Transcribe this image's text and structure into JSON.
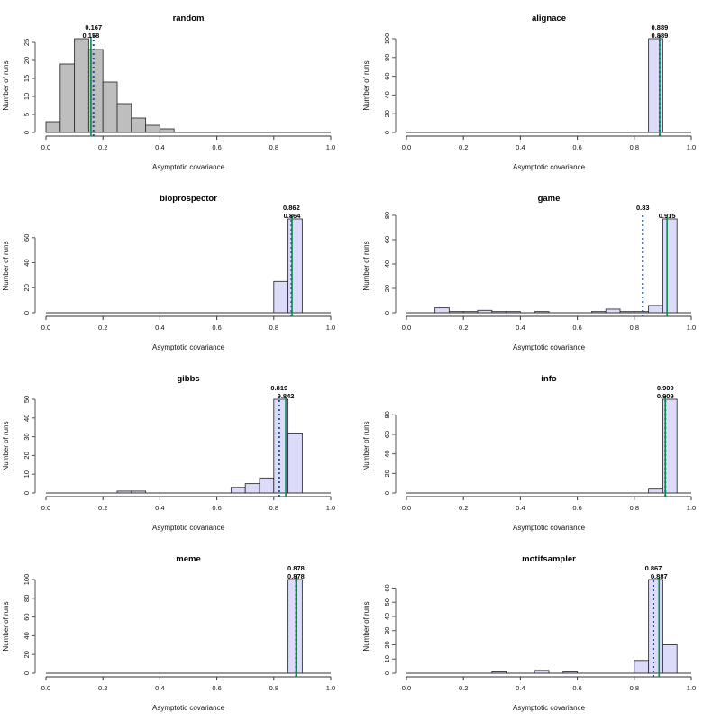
{
  "chart_data": [
    {
      "type": "bar",
      "title": "random",
      "xlabel": "Asymptotic covariance",
      "ylabel": "Number of runs",
      "xlim": [
        0,
        1
      ],
      "xticks": [
        "0.0",
        "0.2",
        "0.4",
        "0.6",
        "0.8",
        "1.0"
      ],
      "ylim": [
        0,
        26
      ],
      "yticks": [
        0,
        5,
        10,
        15,
        20,
        25
      ],
      "bin_width": 0.05,
      "bins_start": [
        0.0,
        0.05,
        0.1,
        0.15,
        0.2,
        0.25,
        0.3,
        0.35,
        0.4,
        0.45,
        0.5,
        0.55,
        0.6,
        0.65,
        0.7,
        0.75,
        0.8,
        0.85,
        0.9,
        0.95
      ],
      "counts": [
        3,
        19,
        26,
        23,
        14,
        8,
        4,
        2,
        1,
        0,
        0,
        0,
        0,
        0,
        0,
        0,
        0,
        0,
        0,
        0
      ],
      "fill": "#bebebe",
      "mean": {
        "value": 0.167,
        "label": "0.167",
        "style": "dotted",
        "color": "#1f4e9c"
      },
      "median": {
        "value": 0.158,
        "label": "0.158",
        "style": "solid",
        "color": "#0a8a4a"
      }
    },
    {
      "type": "bar",
      "title": "alignace",
      "xlabel": "Asymptotic covariance",
      "ylabel": "Number of runs",
      "xlim": [
        0,
        1
      ],
      "xticks": [
        "0.0",
        "0.2",
        "0.4",
        "0.6",
        "0.8",
        "1.0"
      ],
      "ylim": [
        0,
        100
      ],
      "yticks": [
        0,
        20,
        40,
        60,
        80,
        100
      ],
      "bin_width": 0.05,
      "bins_start": [
        0.0,
        0.05,
        0.1,
        0.15,
        0.2,
        0.25,
        0.3,
        0.35,
        0.4,
        0.45,
        0.5,
        0.55,
        0.6,
        0.65,
        0.7,
        0.75,
        0.8,
        0.85,
        0.9,
        0.95
      ],
      "counts": [
        0,
        0,
        0,
        0,
        0,
        0,
        0,
        0,
        0,
        0,
        0,
        0,
        0,
        0,
        0,
        0,
        0,
        100,
        0,
        0
      ],
      "fill": "#dcdcfa",
      "mean": {
        "value": 0.889,
        "label": "0.889",
        "style": "dotted",
        "color": "#1f4e9c"
      },
      "median": {
        "value": 0.889,
        "label": "0.889",
        "style": "solid",
        "color": "#0a8a4a"
      }
    },
    {
      "type": "bar",
      "title": "bioprospector",
      "xlabel": "Asymptotic covariance",
      "ylabel": "Number of runs",
      "xlim": [
        0,
        1
      ],
      "xticks": [
        "0.0",
        "0.2",
        "0.4",
        "0.6",
        "0.8",
        "1.0"
      ],
      "ylim": [
        0,
        75
      ],
      "yticks": [
        0,
        20,
        40,
        60
      ],
      "bin_width": 0.05,
      "bins_start": [
        0.0,
        0.05,
        0.1,
        0.15,
        0.2,
        0.25,
        0.3,
        0.35,
        0.4,
        0.45,
        0.5,
        0.55,
        0.6,
        0.65,
        0.7,
        0.75,
        0.8,
        0.85,
        0.9,
        0.95
      ],
      "counts": [
        0,
        0,
        0,
        0,
        0,
        0,
        0,
        0,
        0,
        0,
        0,
        0,
        0,
        0,
        0,
        0,
        25,
        75,
        0,
        0
      ],
      "fill": "#dcdcfa",
      "mean": {
        "value": 0.862,
        "label": "0.862",
        "style": "dotted",
        "color": "#1f4e9c"
      },
      "median": {
        "value": 0.864,
        "label": "0.864",
        "style": "solid",
        "color": "#0a8a4a"
      }
    },
    {
      "type": "bar",
      "title": "game",
      "xlabel": "Asymptotic covariance",
      "ylabel": "Number of runs",
      "xlim": [
        0,
        1
      ],
      "xticks": [
        "0.0",
        "0.2",
        "0.4",
        "0.6",
        "0.8",
        "1.0"
      ],
      "ylim": [
        0,
        77
      ],
      "yticks": [
        0,
        20,
        40,
        60,
        80
      ],
      "bin_width": 0.05,
      "bins_start": [
        0.0,
        0.05,
        0.1,
        0.15,
        0.2,
        0.25,
        0.3,
        0.35,
        0.4,
        0.45,
        0.5,
        0.55,
        0.6,
        0.65,
        0.7,
        0.75,
        0.8,
        0.85,
        0.9,
        0.95
      ],
      "counts": [
        0,
        0,
        4,
        1,
        1,
        2,
        1,
        1,
        0,
        1,
        0,
        0,
        0,
        1,
        3,
        1,
        1,
        6,
        77,
        0
      ],
      "fill": "#dcdcfa",
      "mean": {
        "value": 0.83,
        "label": "0.83",
        "style": "dotted",
        "color": "#1f4e9c"
      },
      "median": {
        "value": 0.915,
        "label": "0.915",
        "style": "solid",
        "color": "#0a8a4a"
      }
    },
    {
      "type": "bar",
      "title": "gibbs",
      "xlabel": "Asymptotic covariance",
      "ylabel": "Number of runs",
      "xlim": [
        0,
        1
      ],
      "xticks": [
        "0.0",
        "0.2",
        "0.4",
        "0.6",
        "0.8",
        "1.0"
      ],
      "ylim": [
        0,
        50
      ],
      "yticks": [
        0,
        10,
        20,
        30,
        40,
        50
      ],
      "bin_width": 0.05,
      "bins_start": [
        0.0,
        0.05,
        0.1,
        0.15,
        0.2,
        0.25,
        0.3,
        0.35,
        0.4,
        0.45,
        0.5,
        0.55,
        0.6,
        0.65,
        0.7,
        0.75,
        0.8,
        0.85,
        0.9,
        0.95
      ],
      "counts": [
        0,
        0,
        0,
        0,
        0,
        1,
        1,
        0,
        0,
        0,
        0,
        0,
        0,
        3,
        5,
        8,
        50,
        32,
        0,
        0
      ],
      "fill": "#dcdcfa",
      "mean": {
        "value": 0.819,
        "label": "0.819",
        "style": "dotted",
        "color": "#1f4e9c"
      },
      "median": {
        "value": 0.842,
        "label": "0.842",
        "style": "solid",
        "color": "#0a8a4a"
      }
    },
    {
      "type": "bar",
      "title": "info",
      "xlabel": "Asymptotic covariance",
      "ylabel": "Number of runs",
      "xlim": [
        0,
        1
      ],
      "xticks": [
        "0.0",
        "0.2",
        "0.4",
        "0.6",
        "0.8",
        "1.0"
      ],
      "ylim": [
        0,
        96
      ],
      "yticks": [
        0,
        20,
        40,
        60,
        80
      ],
      "bin_width": 0.05,
      "bins_start": [
        0.0,
        0.05,
        0.1,
        0.15,
        0.2,
        0.25,
        0.3,
        0.35,
        0.4,
        0.45,
        0.5,
        0.55,
        0.6,
        0.65,
        0.7,
        0.75,
        0.8,
        0.85,
        0.9,
        0.95
      ],
      "counts": [
        0,
        0,
        0,
        0,
        0,
        0,
        0,
        0,
        0,
        0,
        0,
        0,
        0,
        0,
        0,
        0,
        0,
        4,
        96,
        0
      ],
      "fill": "#dcdcfa",
      "mean": {
        "value": 0.909,
        "label": "0.909",
        "style": "dotted",
        "color": "#1f4e9c"
      },
      "median": {
        "value": 0.909,
        "label": "0.909",
        "style": "solid",
        "color": "#0a8a4a"
      }
    },
    {
      "type": "bar",
      "title": "meme",
      "xlabel": "Asymptotic covariance",
      "ylabel": "Number of runs",
      "xlim": [
        0,
        1
      ],
      "xticks": [
        "0.0",
        "0.2",
        "0.4",
        "0.6",
        "0.8",
        "1.0"
      ],
      "ylim": [
        0,
        100
      ],
      "yticks": [
        0,
        20,
        40,
        60,
        80,
        100
      ],
      "bin_width": 0.05,
      "bins_start": [
        0.0,
        0.05,
        0.1,
        0.15,
        0.2,
        0.25,
        0.3,
        0.35,
        0.4,
        0.45,
        0.5,
        0.55,
        0.6,
        0.65,
        0.7,
        0.75,
        0.8,
        0.85,
        0.9,
        0.95
      ],
      "counts": [
        0,
        0,
        0,
        0,
        0,
        0,
        0,
        0,
        0,
        0,
        0,
        0,
        0,
        0,
        0,
        0,
        0,
        100,
        0,
        0
      ],
      "fill": "#dcdcfa",
      "mean": {
        "value": 0.878,
        "label": "0.878",
        "style": "dotted",
        "color": "#1f4e9c"
      },
      "median": {
        "value": 0.878,
        "label": "0.878",
        "style": "solid",
        "color": "#0a8a4a"
      }
    },
    {
      "type": "bar",
      "title": "motifsampler",
      "xlabel": "Asymptotic covariance",
      "ylabel": "Number of runs",
      "xlim": [
        0,
        1
      ],
      "xticks": [
        "0.0",
        "0.2",
        "0.4",
        "0.6",
        "0.8",
        "1.0"
      ],
      "ylim": [
        0,
        66
      ],
      "yticks": [
        0,
        10,
        20,
        30,
        40,
        50,
        60
      ],
      "bin_width": 0.05,
      "bins_start": [
        0.0,
        0.05,
        0.1,
        0.15,
        0.2,
        0.25,
        0.3,
        0.35,
        0.4,
        0.45,
        0.5,
        0.55,
        0.6,
        0.65,
        0.7,
        0.75,
        0.8,
        0.85,
        0.9,
        0.95
      ],
      "counts": [
        0,
        0,
        0,
        0,
        0,
        0,
        1,
        0,
        0,
        2,
        0,
        1,
        0,
        0,
        0,
        0,
        9,
        66,
        20,
        0
      ],
      "fill": "#dcdcfa",
      "mean": {
        "value": 0.867,
        "label": "0.867",
        "style": "dotted",
        "color": "#1f4e9c"
      },
      "median": {
        "value": 0.887,
        "label": "0.887",
        "style": "solid",
        "color": "#0a8a4a"
      }
    }
  ]
}
